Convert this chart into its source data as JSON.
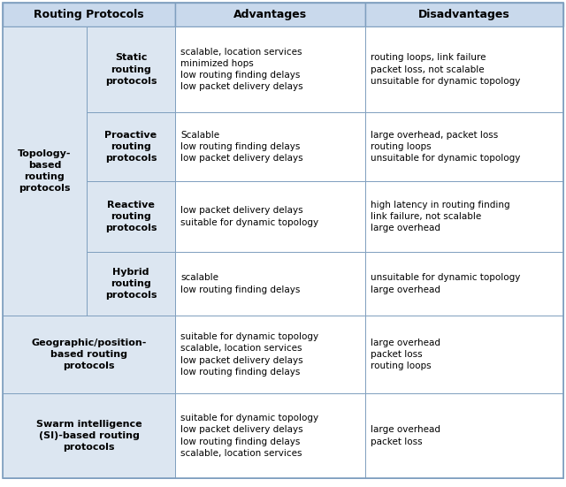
{
  "header": [
    "Routing Protocols",
    "Advantages",
    "Disadvantages"
  ],
  "header_bg": "#c9d9ec",
  "col1_bg": "#dce6f1",
  "white_bg": "#ffffff",
  "border_color": "#7f9fbf",
  "figsize": [
    6.4,
    5.51
  ],
  "dpi": 100,
  "rows": [
    {
      "col1_main": "Topology-\nbased\nrouting\nprotocols",
      "col1_sub": "Static\nrouting\nprotocols",
      "advantages": "scalable, location services\nminimized hops\nlow routing finding delays\nlow packet delivery delays",
      "disadvantages": "routing loops, link failure\npacket loss, not scalable\nunsuitable for dynamic topology",
      "group": "topo"
    },
    {
      "col1_main": "",
      "col1_sub": "Proactive\nrouting\nprotocols",
      "advantages": "Scalable\nlow routing finding delays\nlow packet delivery delays",
      "disadvantages": "large overhead, packet loss\nrouting loops\nunsuitable for dynamic topology",
      "group": "topo"
    },
    {
      "col1_main": "",
      "col1_sub": "Reactive\nrouting\nprotocols",
      "advantages": "low packet delivery delays\nsuitable for dynamic topology",
      "disadvantages": "high latency in routing finding\nlink failure, not scalable\nlarge overhead",
      "group": "topo"
    },
    {
      "col1_main": "",
      "col1_sub": "Hybrid\nrouting\nprotocols",
      "advantages": "scalable\nlow routing finding delays",
      "disadvantages": "unsuitable for dynamic topology\nlarge overhead",
      "group": "topo"
    },
    {
      "col1_main": "Geographic/position-\nbased routing\nprotocols",
      "col1_sub": "",
      "advantages": "suitable for dynamic topology\nscalable, location services\nlow packet delivery delays\nlow routing finding delays",
      "disadvantages": "large overhead\npacket loss\nrouting loops",
      "group": "geo"
    },
    {
      "col1_main": "Swarm intelligence\n(SI)-based routing\nprotocols",
      "col1_sub": "",
      "advantages": "suitable for dynamic topology\nlow packet delivery delays\nlow routing finding delays\nscalable, location services",
      "disadvantages": "large overhead\npacket loss",
      "group": "swarm"
    }
  ]
}
